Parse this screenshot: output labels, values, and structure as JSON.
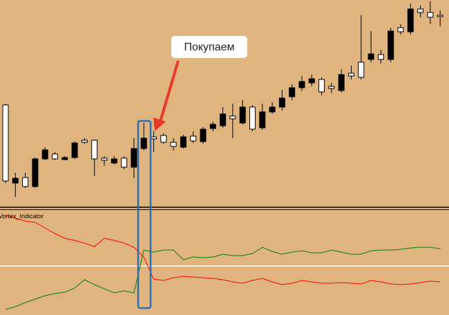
{
  "chart_data": [
    {
      "type": "candlestick",
      "annotation": "Покупаем",
      "ylim": [
        0,
        300
      ],
      "up_color": "#ffffff",
      "down_color": "#000000",
      "open": [
        38,
        42,
        30,
        70,
        83,
        70,
        72,
        93,
        94,
        70,
        68,
        70,
        58,
        85,
        100,
        99,
        94,
        88,
        102,
        96,
        113,
        120,
        135,
        128,
        145,
        113,
        138,
        145,
        158,
        173,
        182,
        186,
        167,
        172,
        192,
        190,
        188,
        222,
        214,
        255,
        254,
        287,
        282,
        275,
        276
      ],
      "high": [
        150,
        50,
        50,
        72,
        87,
        80,
        74,
        95,
        100,
        98,
        74,
        74,
        74,
        100,
        122,
        110,
        107,
        100,
        105,
        110,
        116,
        124,
        145,
        150,
        155,
        148,
        150,
        152,
        170,
        178,
        190,
        192,
        188,
        180,
        200,
        205,
        278,
        255,
        228,
        260,
        265,
        295,
        292,
        298,
        285
      ],
      "low": [
        35,
        15,
        28,
        28,
        68,
        68,
        68,
        70,
        92,
        45,
        60,
        62,
        55,
        42,
        82,
        80,
        92,
        82,
        85,
        93,
        92,
        110,
        115,
        100,
        120,
        110,
        112,
        135,
        140,
        155,
        168,
        175,
        162,
        165,
        166,
        185,
        185,
        210,
        208,
        210,
        250,
        250,
        275,
        265,
        262
      ],
      "close": [
        148,
        35,
        43,
        30,
        70,
        77,
        69,
        72,
        97,
        97,
        71,
        64,
        71,
        58,
        85,
        102,
        104,
        94,
        87,
        103,
        95,
        114,
        118,
        132,
        122,
        145,
        115,
        138,
        145,
        160,
        173,
        180,
        185,
        175,
        169,
        194,
        210,
        214,
        221,
        214,
        260,
        254,
        287,
        282,
        278
      ]
    },
    {
      "type": "line",
      "title": "Vortex_Indicator",
      "ylim": [
        0,
        150
      ],
      "level": 71,
      "level_color": "#ffffff",
      "series": [
        {
          "color": "#ff0000",
          "values": [
            144,
            140,
            136,
            134,
            126,
            118,
            111,
            108,
            104,
            99,
            111,
            108,
            104,
            98,
            84,
            52,
            50,
            54,
            56,
            55,
            54,
            53,
            51,
            48,
            46,
            50,
            53,
            48,
            44,
            46,
            50,
            48,
            46,
            46,
            47,
            46,
            45,
            50,
            48,
            45,
            44,
            45,
            47,
            49,
            48
          ]
        },
        {
          "color": "#008000",
          "values": [
            8,
            12,
            18,
            23,
            28,
            31,
            33,
            39,
            51,
            44,
            38,
            32,
            35,
            32,
            94,
            91,
            94,
            94,
            80,
            84,
            83,
            84,
            88,
            86,
            86,
            89,
            98,
            92,
            88,
            91,
            93,
            90,
            90,
            94,
            91,
            88,
            88,
            93,
            94,
            94,
            95,
            97,
            98,
            98,
            96
          ]
        }
      ]
    }
  ]
}
